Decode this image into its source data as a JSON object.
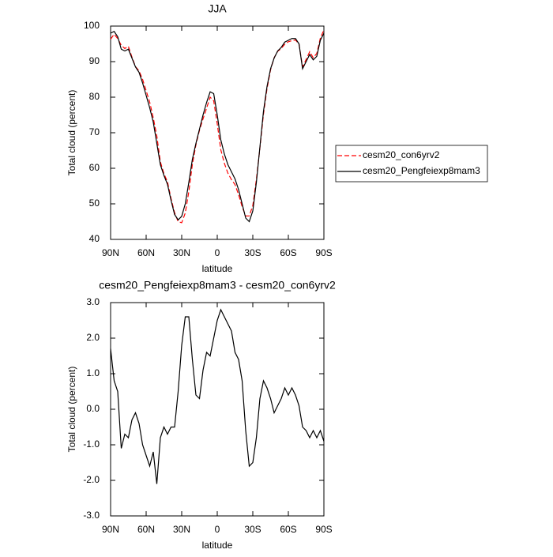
{
  "chart_data": [
    {
      "type": "line",
      "title": "JJA",
      "xlabel": "latitude",
      "ylabel": "Total cloud (percent)",
      "x": [
        90,
        87,
        84,
        81,
        78,
        75,
        72,
        69,
        66,
        63,
        60,
        57,
        54,
        51,
        48,
        45,
        42,
        39,
        36,
        33,
        30,
        27,
        24,
        21,
        18,
        15,
        12,
        9,
        6,
        3,
        0,
        -3,
        -6,
        -9,
        -12,
        -15,
        -18,
        -21,
        -24,
        -27,
        -30,
        -33,
        -36,
        -39,
        -42,
        -45,
        -48,
        -51,
        -54,
        -57,
        -60,
        -63,
        -66,
        -69,
        -72,
        -75,
        -78,
        -81,
        -84,
        -87,
        -90
      ],
      "xlim": [
        90,
        -90
      ],
      "xticks": [
        {
          "value": 90,
          "label": "90N"
        },
        {
          "value": 60,
          "label": "60N"
        },
        {
          "value": 30,
          "label": "30N"
        },
        0,
        {
          "value": -30,
          "label": "30S"
        },
        {
          "value": -60,
          "label": "60S"
        },
        {
          "value": -90,
          "label": "90S"
        }
      ],
      "ylim": [
        40,
        100
      ],
      "yticks": [
        40,
        50,
        60,
        70,
        80,
        90,
        100
      ],
      "legend": "right",
      "series": [
        {
          "name": "cesm20_con6yrv2",
          "color": "#ff0000",
          "dashed": true,
          "values": [
            96.3,
            97.7,
            96.5,
            94.6,
            93.7,
            94.3,
            91.3,
            88.6,
            87.4,
            85,
            81.8,
            78.6,
            74.2,
            69.1,
            61.8,
            58.5,
            56.2,
            51.5,
            47.5,
            45,
            44.7,
            47.4,
            53.4,
            61.1,
            66.6,
            70.7,
            73.9,
            76.9,
            80,
            79,
            72.5,
            65.2,
            61.4,
            58.6,
            56.8,
            55.4,
            52.6,
            49.2,
            46.6,
            46.6,
            49.5,
            56.8,
            65.7,
            75.2,
            82.4,
            87.7,
            91.1,
            92.9,
            93.7,
            94.9,
            95.6,
            95.9,
            96.1,
            94.9,
            88.5,
            90.6,
            92.8,
            91.1,
            92.3,
            96.6,
            98.9
          ]
        },
        {
          "name": "cesm20_Pengfeiexp8mam3",
          "color": "#000000",
          "dashed": false,
          "values": [
            98,
            98.5,
            97,
            93.5,
            93,
            93.5,
            91,
            88.5,
            87,
            84,
            80.5,
            77,
            73,
            67,
            61,
            58,
            55.5,
            51,
            47,
            45.5,
            46.5,
            50,
            56,
            62.5,
            67,
            71,
            75,
            78.5,
            81.5,
            81,
            75,
            68,
            64,
            61,
            59,
            57,
            54,
            50,
            46,
            45,
            48,
            56,
            66,
            76,
            83,
            88,
            91,
            93,
            94,
            95.5,
            96,
            96.5,
            96.5,
            95,
            88,
            90,
            92,
            90.5,
            91.5,
            96,
            98
          ]
        }
      ]
    },
    {
      "type": "line",
      "title": "cesm20_Pengfeiexp8mam3 - cesm20_con6yrv2",
      "xlabel": "latitude",
      "ylabel": "Total cloud (percent)",
      "x": [
        90,
        87,
        84,
        81,
        78,
        75,
        72,
        69,
        66,
        63,
        60,
        57,
        54,
        51,
        48,
        45,
        42,
        39,
        36,
        33,
        30,
        27,
        24,
        21,
        18,
        15,
        12,
        9,
        6,
        3,
        0,
        -3,
        -6,
        -9,
        -12,
        -15,
        -18,
        -21,
        -24,
        -27,
        -30,
        -33,
        -36,
        -39,
        -42,
        -45,
        -48,
        -51,
        -54,
        -57,
        -60,
        -63,
        -66,
        -69,
        -72,
        -75,
        -78,
        -81,
        -84,
        -87,
        -90
      ],
      "xlim": [
        90,
        -90
      ],
      "xticks": [
        {
          "value": 90,
          "label": "90N"
        },
        {
          "value": 60,
          "label": "60N"
        },
        {
          "value": 30,
          "label": "30N"
        },
        0,
        {
          "value": -30,
          "label": "30S"
        },
        {
          "value": -60,
          "label": "60S"
        },
        {
          "value": -90,
          "label": "90S"
        }
      ],
      "ylim": [
        -3,
        3
      ],
      "yticks": [
        {
          "value": -3,
          "label": "-3.0"
        },
        {
          "value": -2,
          "label": "-2.0"
        },
        {
          "value": -1,
          "label": "-1.0"
        },
        {
          "value": 0,
          "label": "0.0"
        },
        {
          "value": 1,
          "label": "1.0"
        },
        {
          "value": 2,
          "label": "2.0"
        },
        {
          "value": 3,
          "label": "3.0"
        }
      ],
      "series": [
        {
          "color": "#000000",
          "dashed": false,
          "values": [
            1.7,
            0.8,
            0.5,
            -1.1,
            -0.7,
            -0.8,
            -0.3,
            -0.1,
            -0.4,
            -1.0,
            -1.3,
            -1.6,
            -1.2,
            -2.1,
            -0.8,
            -0.5,
            -0.7,
            -0.5,
            -0.5,
            0.5,
            1.8,
            2.6,
            2.6,
            1.4,
            0.4,
            0.3,
            1.1,
            1.6,
            1.5,
            2.0,
            2.5,
            2.8,
            2.6,
            2.4,
            2.2,
            1.6,
            1.4,
            0.8,
            -0.6,
            -1.6,
            -1.5,
            -0.8,
            0.3,
            0.8,
            0.6,
            0.3,
            -0.1,
            0.1,
            0.3,
            0.6,
            0.4,
            0.6,
            0.4,
            0.1,
            -0.5,
            -0.6,
            -0.8,
            -0.6,
            -0.8,
            -0.6,
            -0.9
          ]
        }
      ]
    }
  ]
}
